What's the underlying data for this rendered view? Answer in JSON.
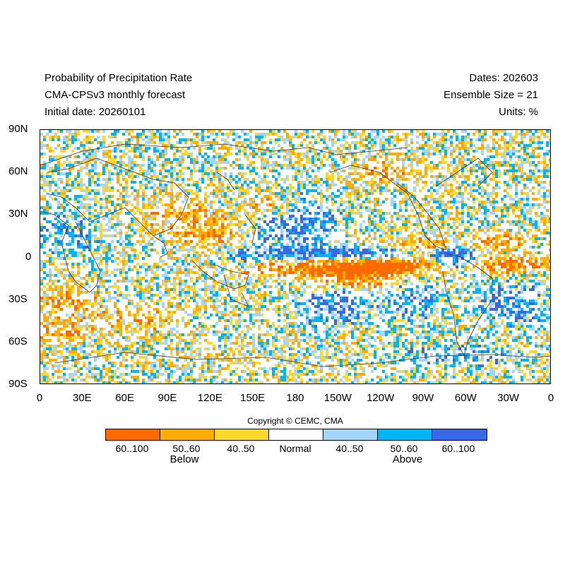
{
  "header": {
    "left": [
      "Probability of Precipitation Rate",
      "CMA-CPSv3 monthly forecast",
      "Initial date: 20260101"
    ],
    "right": [
      "Dates: 202603",
      "Ensemble Size = 21",
      "Units: %"
    ]
  },
  "axes": {
    "lat_labels": [
      "90N",
      "60N",
      "30N",
      "0",
      "30S",
      "60S",
      "90S"
    ],
    "lon_labels": [
      "0",
      "30E",
      "60E",
      "90E",
      "120E",
      "150E",
      "180",
      "150W",
      "120W",
      "90W",
      "60W",
      "30W",
      "0"
    ]
  },
  "copyright": "Copyright © CEMC, CMA",
  "legend": {
    "categories": [
      {
        "label": "60..100",
        "color": "#ff6a00"
      },
      {
        "label": "50..60",
        "color": "#ffab00"
      },
      {
        "label": "40..50",
        "color": "#fcd72e"
      },
      {
        "label": "Normal",
        "color": "#ffffff"
      },
      {
        "label": "40..50",
        "color": "#a3d5ff"
      },
      {
        "label": "50..60",
        "color": "#00b5f0"
      },
      {
        "label": "60..100",
        "color": "#3a67e3"
      }
    ],
    "below_label": "Below",
    "above_label": "Above"
  },
  "map": {
    "projection": "cylindrical-equidistant",
    "lon_range": [
      0,
      360
    ],
    "lat_range": [
      -90,
      90
    ]
  }
}
